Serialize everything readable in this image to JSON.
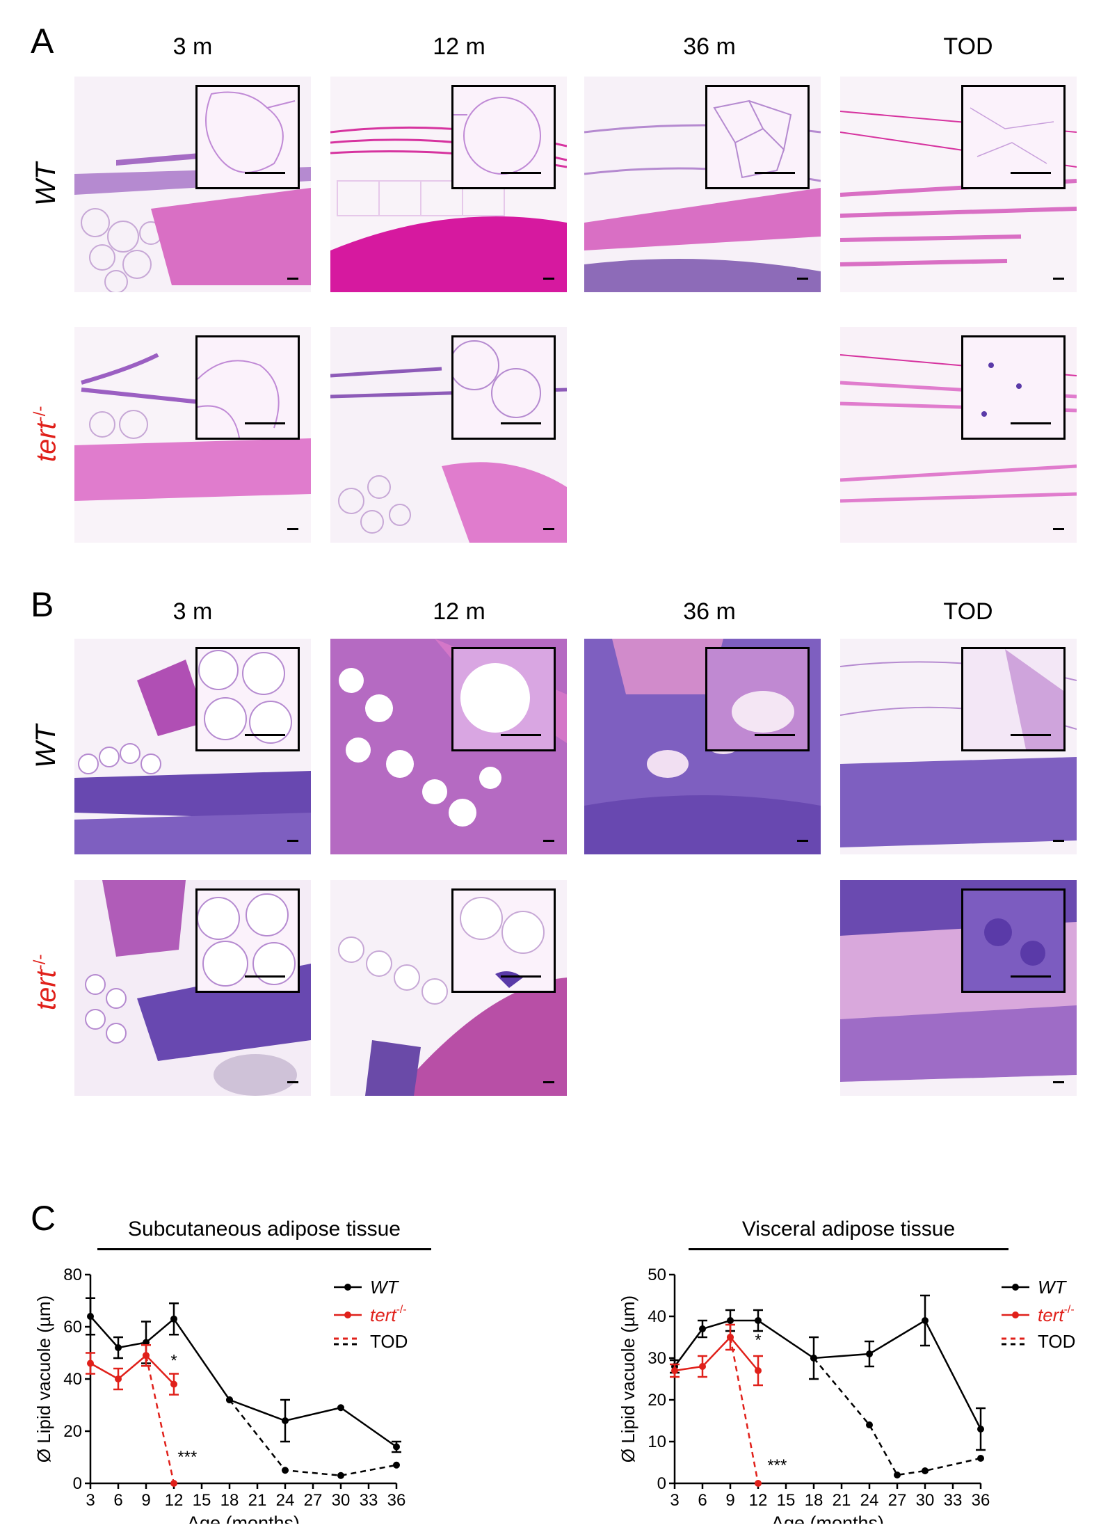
{
  "panel_a": {
    "label": "A",
    "columns": [
      "3 m",
      "12 m",
      "36 m",
      "TOD"
    ],
    "row_wt": "WT",
    "row_tert": {
      "base": "tert",
      "sup": "-/-"
    }
  },
  "panel_b": {
    "label": "B",
    "columns": [
      "3 m",
      "12 m",
      "36 m",
      "TOD"
    ],
    "row_wt": "WT",
    "row_tert": {
      "base": "tert",
      "sup": "-/-"
    }
  },
  "panel_c": {
    "label": "C",
    "legend": {
      "wt": "WT",
      "tert_base": "tert",
      "tert_sup": "-/-",
      "tod": "TOD"
    },
    "ylabel": "Ø Lipid vacuole (µm)",
    "xlabel": "Age  (months)"
  },
  "colors": {
    "wt": "#000000",
    "tert": "#e0201a"
  },
  "chart_data": [
    {
      "type": "line",
      "title": "Subcutaneous adipose tissue",
      "xlabel": "Age  (months)",
      "ylabel": "Ø Lipid vacuole (µm)",
      "xticks": [
        3,
        6,
        9,
        12,
        15,
        18,
        21,
        24,
        27,
        30,
        33,
        36
      ],
      "yticks": [
        0,
        20,
        40,
        60,
        80
      ],
      "xlim": [
        3,
        36
      ],
      "ylim": [
        0,
        80
      ],
      "series": [
        {
          "name": "WT",
          "color": "#000000",
          "style": "solid",
          "x": [
            3,
            6,
            9,
            12,
            18,
            24,
            30,
            36
          ],
          "y": [
            64,
            52,
            54,
            63,
            32,
            24,
            29,
            14
          ],
          "err": [
            7,
            4,
            8,
            6,
            0,
            8,
            0,
            2
          ]
        },
        {
          "name": "tert-/-",
          "color": "#e0201a",
          "style": "solid",
          "x": [
            3,
            6,
            9,
            12
          ],
          "y": [
            46,
            40,
            49,
            38
          ],
          "err": [
            4,
            4,
            4,
            4
          ]
        },
        {
          "name": "TOD",
          "color": "#000000",
          "style": "dashed",
          "x": [
            18,
            24,
            30,
            36
          ],
          "y": [
            32,
            5,
            3,
            7
          ],
          "err": [
            0,
            0,
            0,
            0
          ]
        },
        {
          "name": "TOD",
          "color": "#e0201a",
          "style": "dashed",
          "x": [
            9,
            12
          ],
          "y": [
            49,
            0
          ],
          "err": [
            0,
            0
          ]
        }
      ],
      "annotations": [
        {
          "text": "*",
          "x": 12,
          "y": 45
        },
        {
          "text": "***",
          "x": 12.4,
          "y": 8
        }
      ]
    },
    {
      "type": "line",
      "title": "Visceral adipose tissue",
      "xlabel": "Age  (months)",
      "ylabel": "Ø Lipid vacuole (µm)",
      "xticks": [
        3,
        6,
        9,
        12,
        15,
        18,
        21,
        24,
        27,
        30,
        33,
        36
      ],
      "yticks": [
        0,
        10,
        20,
        30,
        40,
        50
      ],
      "xlim": [
        3,
        36
      ],
      "ylim": [
        0,
        50
      ],
      "series": [
        {
          "name": "WT",
          "color": "#000000",
          "style": "solid",
          "x": [
            3,
            6,
            9,
            12,
            18,
            24,
            30,
            36
          ],
          "y": [
            28,
            37,
            39,
            39,
            30,
            31,
            39,
            13
          ],
          "err": [
            1.5,
            2,
            2.5,
            2.5,
            5,
            3,
            6,
            5
          ]
        },
        {
          "name": "tert-/-",
          "color": "#e0201a",
          "style": "solid",
          "x": [
            3,
            6,
            9,
            12
          ],
          "y": [
            27,
            28,
            35,
            27
          ],
          "err": [
            1.5,
            2.5,
            3,
            3.5
          ]
        },
        {
          "name": "TOD",
          "color": "#000000",
          "style": "dashed",
          "x": [
            18,
            24,
            27,
            30,
            36
          ],
          "y": [
            30,
            14,
            2,
            3,
            6
          ],
          "err": [
            0,
            0,
            0,
            0,
            0
          ]
        },
        {
          "name": "TOD",
          "color": "#e0201a",
          "style": "dashed",
          "x": [
            9,
            12
          ],
          "y": [
            35,
            0
          ],
          "err": [
            0,
            0
          ]
        }
      ],
      "annotations": [
        {
          "text": "*",
          "x": 12,
          "y": 33
        },
        {
          "text": "***",
          "x": 13,
          "y": 3
        }
      ]
    }
  ]
}
